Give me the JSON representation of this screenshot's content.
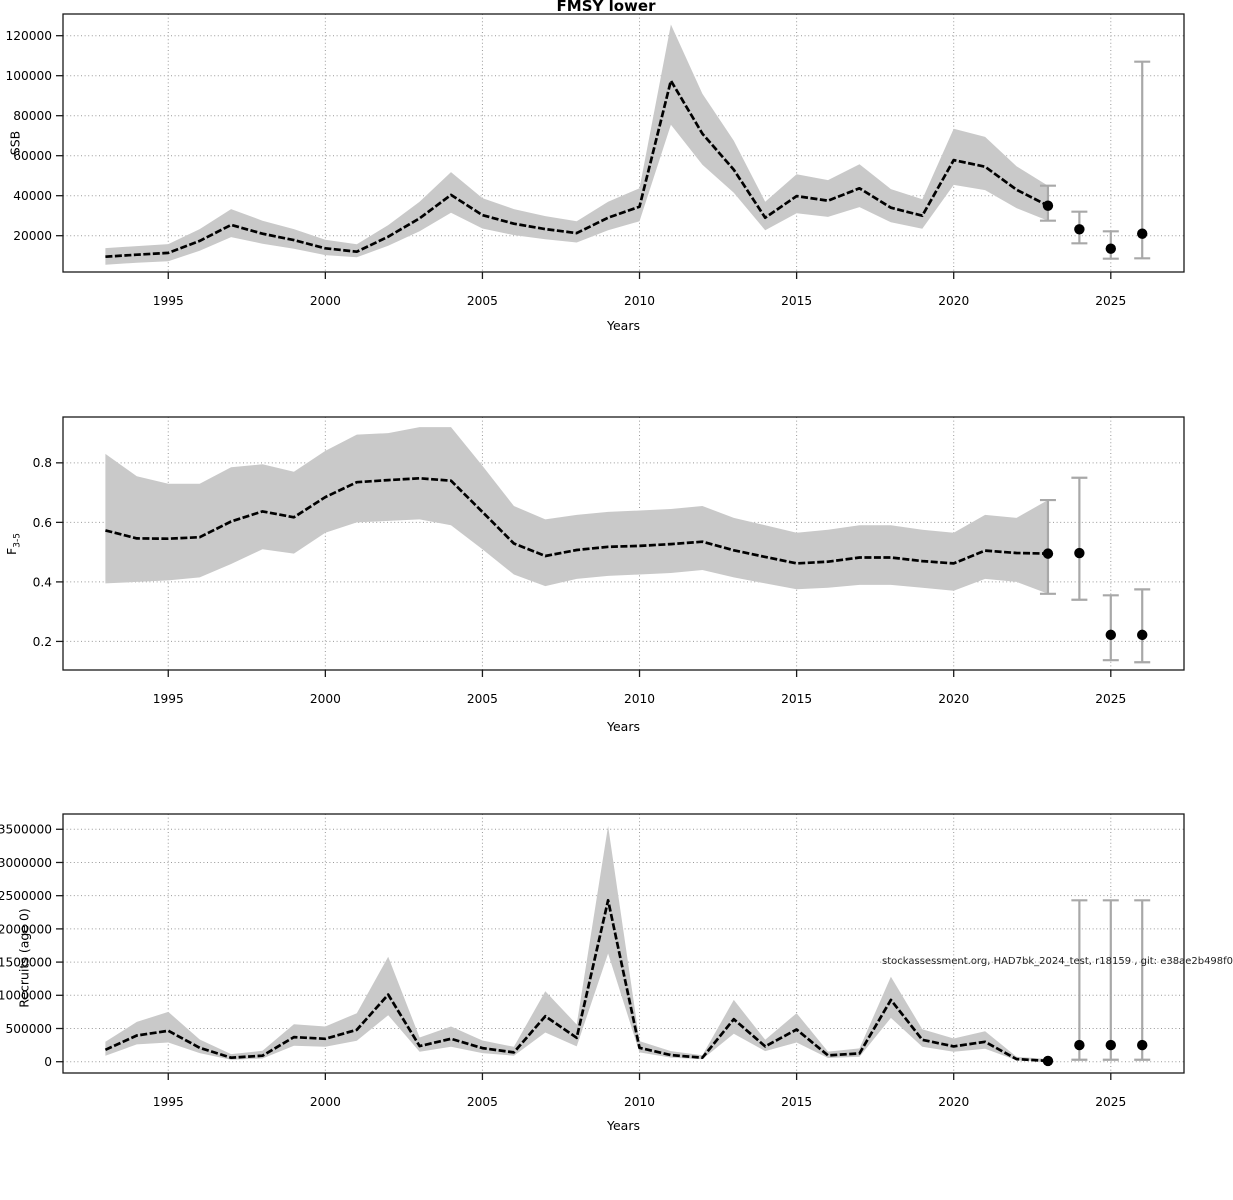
{
  "figure": {
    "title": "FMSY lower",
    "watermark": "stockassessment.org, HAD7bk_2024_test, r18159 , git: e38ae2b498f0"
  },
  "chart_data": [
    {
      "type": "area",
      "title": "FMSY lower",
      "xlabel": "Years",
      "ylabel": "SSB",
      "legend": "none",
      "grid": true,
      "x": [
        1993,
        1994,
        1995,
        1996,
        1997,
        1998,
        1999,
        2000,
        2001,
        2002,
        2003,
        2004,
        2005,
        2006,
        2007,
        2008,
        2009,
        2010,
        2011,
        2012,
        2013,
        2014,
        2015,
        2016,
        2017,
        2018,
        2019,
        2020,
        2021,
        2022,
        2023
      ],
      "series": [
        {
          "name": "estimate",
          "values": [
            9500,
            10500,
            11400,
            17400,
            25400,
            21000,
            17800,
            13700,
            12000,
            19500,
            28700,
            40400,
            30300,
            26000,
            23300,
            21300,
            29000,
            34500,
            97500,
            71000,
            53000,
            29000,
            39800,
            37500,
            43700,
            34000,
            30000,
            57800,
            54500,
            43000,
            35000
          ]
        },
        {
          "name": "ci_lower",
          "values": [
            5500,
            6500,
            7200,
            12500,
            19300,
            16000,
            13500,
            10300,
            9200,
            15000,
            22200,
            31500,
            23600,
            20300,
            18200,
            16600,
            22700,
            27200,
            75500,
            55500,
            41500,
            22700,
            31200,
            29400,
            34300,
            26700,
            23500,
            45400,
            42800,
            33800,
            27500
          ]
        },
        {
          "name": "ci_upper",
          "values": [
            13800,
            14800,
            15800,
            23300,
            33300,
            27500,
            23300,
            18000,
            15700,
            25300,
            37000,
            51800,
            38800,
            33300,
            29800,
            27200,
            37000,
            43700,
            125600,
            91000,
            67500,
            37000,
            50700,
            47800,
            55700,
            43300,
            38200,
            73500,
            69400,
            54700,
            45000
          ]
        }
      ],
      "forecast": [
        {
          "year": 2023,
          "value": 35000,
          "lo": 27500,
          "hi": 45000
        },
        {
          "year": 2024,
          "value": 23200,
          "lo": 16200,
          "hi": 32000
        },
        {
          "year": 2025,
          "value": 13500,
          "lo": 8500,
          "hi": 22200
        },
        {
          "year": 2026,
          "value": 21000,
          "lo": 8700,
          "hi": 107000
        }
      ],
      "xticks": [
        1995,
        2000,
        2005,
        2010,
        2015,
        2020,
        2025
      ],
      "yticks": [
        20000,
        40000,
        60000,
        80000,
        100000,
        120000
      ],
      "ytick_labels": [
        "20000",
        "40000",
        "60000",
        "80000",
        "100000",
        "120000"
      ],
      "xlim": [
        1991.65,
        2027.33
      ],
      "ylim": [
        1850,
        130850
      ]
    },
    {
      "type": "area",
      "title": "",
      "xlabel": "Years",
      "ylabel": "F",
      "ylabel_sub": "3-5",
      "legend": "none",
      "grid": true,
      "x": [
        1993,
        1994,
        1995,
        1996,
        1997,
        1998,
        1999,
        2000,
        2001,
        2002,
        2003,
        2004,
        2005,
        2006,
        2007,
        2008,
        2009,
        2010,
        2011,
        2012,
        2013,
        2014,
        2015,
        2016,
        2017,
        2018,
        2019,
        2020,
        2021,
        2022,
        2023
      ],
      "series": [
        {
          "name": "estimate",
          "values": [
            0.573,
            0.546,
            0.545,
            0.55,
            0.603,
            0.637,
            0.617,
            0.685,
            0.735,
            0.742,
            0.748,
            0.74,
            0.635,
            0.529,
            0.487,
            0.507,
            0.518,
            0.521,
            0.527,
            0.535,
            0.506,
            0.484,
            0.462,
            0.468,
            0.482,
            0.482,
            0.47,
            0.462,
            0.505,
            0.497,
            0.495
          ]
        },
        {
          "name": "ci_lower",
          "values": [
            0.395,
            0.4,
            0.405,
            0.415,
            0.46,
            0.51,
            0.495,
            0.565,
            0.6,
            0.605,
            0.61,
            0.59,
            0.51,
            0.425,
            0.386,
            0.41,
            0.42,
            0.425,
            0.43,
            0.44,
            0.415,
            0.395,
            0.375,
            0.38,
            0.39,
            0.39,
            0.38,
            0.37,
            0.41,
            0.4,
            0.36
          ]
        },
        {
          "name": "ci_upper",
          "values": [
            0.83,
            0.755,
            0.73,
            0.73,
            0.785,
            0.795,
            0.77,
            0.84,
            0.895,
            0.9,
            0.92,
            0.92,
            0.79,
            0.655,
            0.61,
            0.625,
            0.635,
            0.64,
            0.645,
            0.655,
            0.615,
            0.59,
            0.565,
            0.575,
            0.59,
            0.59,
            0.575,
            0.565,
            0.625,
            0.615,
            0.675
          ]
        }
      ],
      "forecast": [
        {
          "year": 2023,
          "value": 0.495,
          "lo": 0.36,
          "hi": 0.675
        },
        {
          "year": 2024,
          "value": 0.497,
          "lo": 0.34,
          "hi": 0.75
        },
        {
          "year": 2025,
          "value": 0.222,
          "lo": 0.137,
          "hi": 0.355
        },
        {
          "year": 2026,
          "value": 0.222,
          "lo": 0.13,
          "hi": 0.375
        }
      ],
      "xticks": [
        1995,
        2000,
        2005,
        2010,
        2015,
        2020,
        2025
      ],
      "yticks": [
        0.2,
        0.4,
        0.6,
        0.8
      ],
      "ytick_labels": [
        "0.2",
        "0.4",
        "0.6",
        "0.8"
      ],
      "xlim": [
        1991.65,
        2027.33
      ],
      "ylim": [
        0.104,
        0.954
      ]
    },
    {
      "type": "area",
      "title": "",
      "xlabel": "Years",
      "ylabel": "Recruits (age 0)",
      "legend": "none",
      "grid": true,
      "x": [
        1993,
        1994,
        1995,
        1996,
        1997,
        1998,
        1999,
        2000,
        2001,
        2002,
        2003,
        2004,
        2005,
        2006,
        2007,
        2008,
        2009,
        2010,
        2011,
        2012,
        2013,
        2014,
        2015,
        2016,
        2017,
        2018,
        2019,
        2020,
        2021,
        2022,
        2023
      ],
      "series": [
        {
          "name": "estimate",
          "values": [
            180000,
            395000,
            465000,
            210000,
            60000,
            90000,
            370000,
            345000,
            480000,
            1010000,
            235000,
            345000,
            205000,
            140000,
            685000,
            360000,
            2430000,
            210000,
            100000,
            60000,
            640000,
            230000,
            485000,
            95000,
            125000,
            930000,
            330000,
            230000,
            300000,
            40000,
            12000
          ]
        },
        {
          "name": "ci_lower",
          "values": [
            90000,
            260000,
            290000,
            130000,
            30000,
            48000,
            240000,
            225000,
            315000,
            700000,
            150000,
            225000,
            130000,
            90000,
            440000,
            230000,
            1630000,
            140000,
            62000,
            36000,
            420000,
            160000,
            290000,
            56000,
            76000,
            660000,
            225000,
            150000,
            195000,
            21000,
            4000
          ]
        },
        {
          "name": "ci_upper",
          "values": [
            300000,
            600000,
            750000,
            335000,
            115000,
            165000,
            565000,
            530000,
            730000,
            1580000,
            365000,
            530000,
            320000,
            225000,
            1060000,
            560000,
            3550000,
            310000,
            160000,
            98000,
            930000,
            330000,
            730000,
            152000,
            200000,
            1280000,
            490000,
            350000,
            460000,
            75000,
            40000
          ]
        }
      ],
      "forecast": [
        {
          "year": 2023,
          "value": 12000,
          "lo": null,
          "hi": null
        },
        {
          "year": 2024,
          "value": 250000,
          "lo": 30000,
          "hi": 2430000
        },
        {
          "year": 2025,
          "value": 250000,
          "lo": 30000,
          "hi": 2430000
        },
        {
          "year": 2026,
          "value": 250000,
          "lo": 30000,
          "hi": 2430000
        }
      ],
      "xticks": [
        1995,
        2000,
        2005,
        2010,
        2015,
        2020,
        2025
      ],
      "yticks": [
        0,
        500000,
        1000000,
        1500000,
        2000000,
        2500000,
        3000000,
        3500000
      ],
      "ytick_labels": [
        "0",
        "500000",
        "1000000",
        "1500000",
        "2000000",
        "2500000",
        "3000000",
        "3500000"
      ],
      "xlim": [
        1991.65,
        2027.33
      ],
      "ylim": [
        -170000,
        3730000
      ]
    }
  ]
}
